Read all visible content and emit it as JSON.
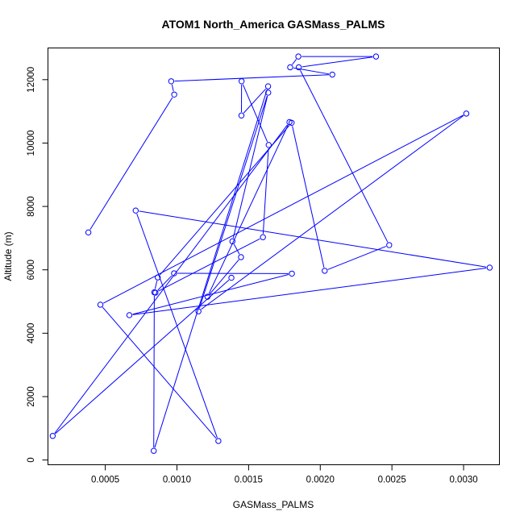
{
  "chart_data": {
    "type": "line",
    "title": "ATOM1 North_America GASMass_PALMS",
    "xlabel": "GASMass_PALMS",
    "ylabel": "Altitude (m)",
    "xlim": [
      0.0001,
      0.00325
    ],
    "ylim": [
      -150,
      13000
    ],
    "xticks": [
      0.0005,
      0.001,
      0.0015,
      0.002,
      0.0025,
      0.003
    ],
    "xtick_labels": [
      "0.0005",
      "0.0010",
      "0.0015",
      "0.0020",
      "0.0025",
      "0.0030"
    ],
    "yticks": [
      0,
      2000,
      4000,
      6000,
      8000,
      10000,
      12000
    ],
    "ytick_labels": [
      "0",
      "2000",
      "4000",
      "6000",
      "8000",
      "10000",
      "12000"
    ],
    "grid": false,
    "color": "#0000ff",
    "marker": "open-circle",
    "series": [
      {
        "x": [
          0.000382,
          0.000981,
          0.00096,
          0.002084,
          0.00179,
          0.001847,
          0.002389,
          0.00185,
          0.002481,
          0.002031,
          0.0018,
          0.000866,
          0.000842,
          0.000838,
          0.001636,
          0.00145,
          0.001451,
          0.00164,
          0.0016,
          0.00085,
          0.00098,
          0.001802,
          0.000668,
          0.003182,
          0.000712,
          0.001289,
          0.000466,
          0.003019,
          0.00115,
          0.001637,
          0.001387,
          0.001447,
          0.001213,
          0.001785,
          0.000133,
          0.00138
        ],
        "y": [
          7180,
          11530,
          11950,
          12160,
          12390,
          12730,
          12730,
          12390,
          6780,
          5970,
          10640,
          5760,
          5290,
          290,
          11790,
          10870,
          11950,
          9940,
          7030,
          5280,
          5890,
          5880,
          4570,
          6070,
          7870,
          600,
          4900,
          10930,
          4690,
          11590,
          6900,
          6400,
          5150,
          10660,
          760,
          5750
        ]
      }
    ]
  }
}
